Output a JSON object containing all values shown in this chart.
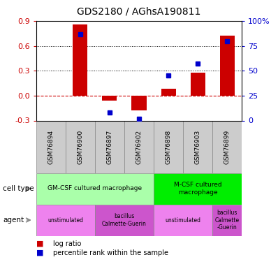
{
  "title": "GDS2180 / AGhsA190811",
  "samples": [
    "GSM76894",
    "GSM76900",
    "GSM76897",
    "GSM76902",
    "GSM76898",
    "GSM76903",
    "GSM76899"
  ],
  "log_ratio": [
    0.0,
    0.86,
    -0.06,
    -0.18,
    0.08,
    0.28,
    0.72
  ],
  "percentile_rank": [
    null,
    87,
    8,
    2,
    45,
    57,
    80
  ],
  "ylim_left": [
    -0.3,
    0.9
  ],
  "ylim_right": [
    0,
    100
  ],
  "yticks_left": [
    -0.3,
    0.0,
    0.3,
    0.6,
    0.9
  ],
  "yticks_right": [
    0,
    25,
    50,
    75,
    100
  ],
  "ytick_labels_right": [
    "0",
    "25",
    "50",
    "75",
    "100%"
  ],
  "bar_color": "#cc0000",
  "dot_color": "#0000cc",
  "zero_line_color": "#cc0000",
  "grid_color": "#000000",
  "cell_type_row": [
    {
      "label": "GM-CSF cultured macrophage",
      "start": 0,
      "end": 4,
      "color": "#aaffaa"
    },
    {
      "label": "M-CSF cultured\nmacrophage",
      "start": 4,
      "end": 7,
      "color": "#00ee00"
    }
  ],
  "agent_row": [
    {
      "label": "unstimulated",
      "start": 0,
      "end": 2,
      "color": "#ee82ee"
    },
    {
      "label": "bacillus\nCalmette-Guerin",
      "start": 2,
      "end": 4,
      "color": "#cc55cc"
    },
    {
      "label": "unstimulated",
      "start": 4,
      "end": 6,
      "color": "#ee82ee"
    },
    {
      "label": "bacillus\nCalmette\n-Guerin",
      "start": 6,
      "end": 7,
      "color": "#cc55cc"
    }
  ],
  "sample_bg_color": "#cccccc",
  "left_label_color": "#cc0000",
  "right_label_color": "#0000cc",
  "legend_items": [
    {
      "label": "log ratio",
      "color": "#cc0000"
    },
    {
      "label": "percentile rank within the sample",
      "color": "#0000cc"
    }
  ]
}
